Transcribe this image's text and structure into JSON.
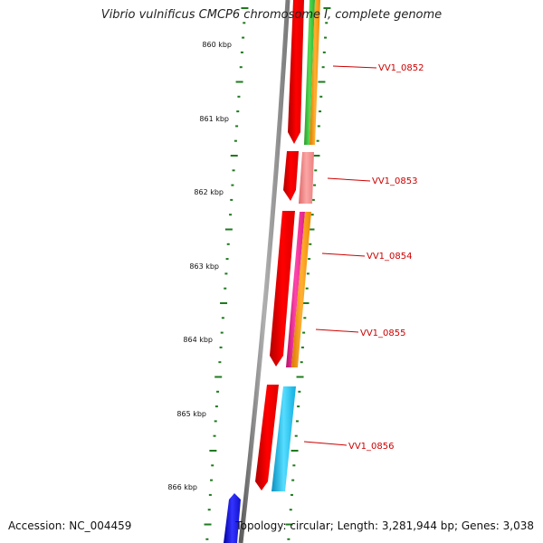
{
  "title": "Vibrio vulnificus CMCP6 chromosome I, complete genome",
  "footer": {
    "accession": "Accession: NC_004459",
    "topology": "Topology: circular; Length: 3,281,944 bp; Genes: 3,038"
  },
  "scale": {
    "ticks": [
      "860 kbp",
      "861 kbp",
      "862 kbp",
      "863 kbp",
      "864 kbp",
      "865 kbp",
      "866 kbp"
    ]
  },
  "genes": [
    {
      "label": "VV1_0852"
    },
    {
      "label": "VV1_0853"
    },
    {
      "label": "VV1_0854"
    },
    {
      "label": "VV1_0855"
    },
    {
      "label": "VV1_0856"
    }
  ],
  "colors": {
    "scale_ticks": "#1f7a1f",
    "backbone": "#8a8a8a",
    "gene_red": "#ff0000",
    "green": "#33bb33",
    "orange": "#ff9900",
    "pink": "#f08080",
    "magenta": "#ee2288",
    "cyan": "#11bbee",
    "blue": "#1111dd",
    "label_red": "#cc0000"
  }
}
